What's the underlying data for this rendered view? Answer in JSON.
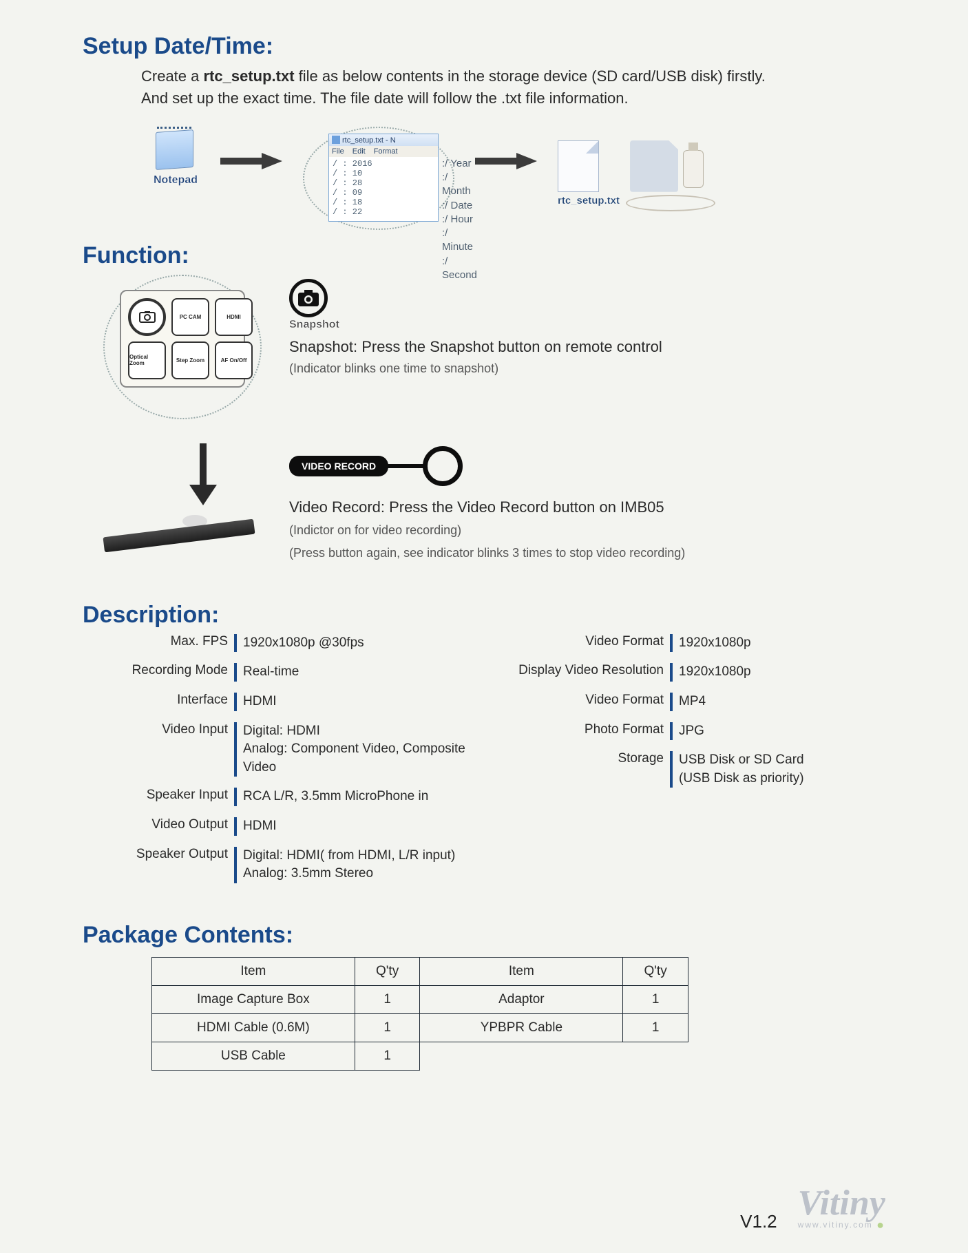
{
  "sections": {
    "setup": "Setup Date/Time:",
    "function": "Function:",
    "description": "Description:",
    "package": "Package Contents:"
  },
  "setup_intro_1a": "Create a ",
  "setup_intro_1b": "rtc_setup.txt",
  "setup_intro_1c": " file as below contents in the storage device (SD card/USB disk) firstly.",
  "setup_intro_2": "And set up the exact time. The file date will follow the .txt file information.",
  "notepad_label": "Notepad",
  "np_title": "rtc_setup.txt - N",
  "np_menu": {
    "file": "File",
    "edit": "Edit",
    "format": "Format"
  },
  "np_lines": [
    "/ : 2016",
    "/ : 10",
    "/ : 28",
    "/ : 09",
    "/ : 18",
    "/ : 22"
  ],
  "np_labels": [
    ":/ Year",
    ":/ Month",
    ":/ Date",
    ":/ Hour",
    ":/ Minute",
    ":/ Second"
  ],
  "rtc_label": "rtc_setup.txt",
  "remote_buttons": [
    "Snapshot",
    "PC CAM",
    "HDMI",
    "Optical Zoom",
    "Step Zoom",
    "AF On/Off"
  ],
  "snapshot": {
    "icon_label": "Snapshot",
    "head": "Snapshot: Press the Snapshot button on remote control",
    "sub": "(Indicator blinks one time to snapshot)"
  },
  "video_record": {
    "pill": "VIDEO RECORD",
    "head": "Video Record: Press the Video Record button on IMB05",
    "sub1": "(Indictor on for video recording)",
    "sub2": "(Press button again, see indicator blinks 3 times to stop video recording)"
  },
  "description_left": [
    {
      "label": "Max. FPS",
      "value": "1920x1080p @30fps"
    },
    {
      "label": "Recording Mode",
      "value": "Real-time"
    },
    {
      "label": "Interface",
      "value": "HDMI"
    },
    {
      "label": "Video Input",
      "value": "Digital: HDMI\nAnalog: Component Video, Composite Video"
    },
    {
      "label": "Speaker Input",
      "value": "RCA L/R, 3.5mm MicroPhone in"
    },
    {
      "label": "Video Output",
      "value": "HDMI"
    },
    {
      "label": "Speaker Output",
      "value": "Digital: HDMI( from HDMI, L/R input)\nAnalog: 3.5mm Stereo"
    }
  ],
  "description_right": [
    {
      "label": "Video Format",
      "value": "1920x1080p"
    },
    {
      "label": "Display Video Resolution",
      "value": "1920x1080p"
    },
    {
      "label": "Video Format",
      "value": "MP4"
    },
    {
      "label": "Photo Format",
      "value": "JPG"
    },
    {
      "label": "Storage",
      "value": "USB Disk or SD Card\n(USB Disk as priority)"
    }
  ],
  "pkg_headers": [
    "Item",
    "Q'ty",
    "Item",
    "Q'ty"
  ],
  "pkg_rows": [
    [
      "Image Capture Box",
      "1",
      "Adaptor",
      "1"
    ],
    [
      "HDMI Cable (0.6M)",
      "1",
      "YPBPR Cable",
      "1"
    ],
    [
      "USB Cable",
      "1",
      "",
      ""
    ]
  ],
  "version": "V1.2",
  "brand": "Vitiny",
  "brand_url": "www.vitiny.com",
  "colors": {
    "heading": "#1a4a8a",
    "divider": "#1a4a8a"
  }
}
